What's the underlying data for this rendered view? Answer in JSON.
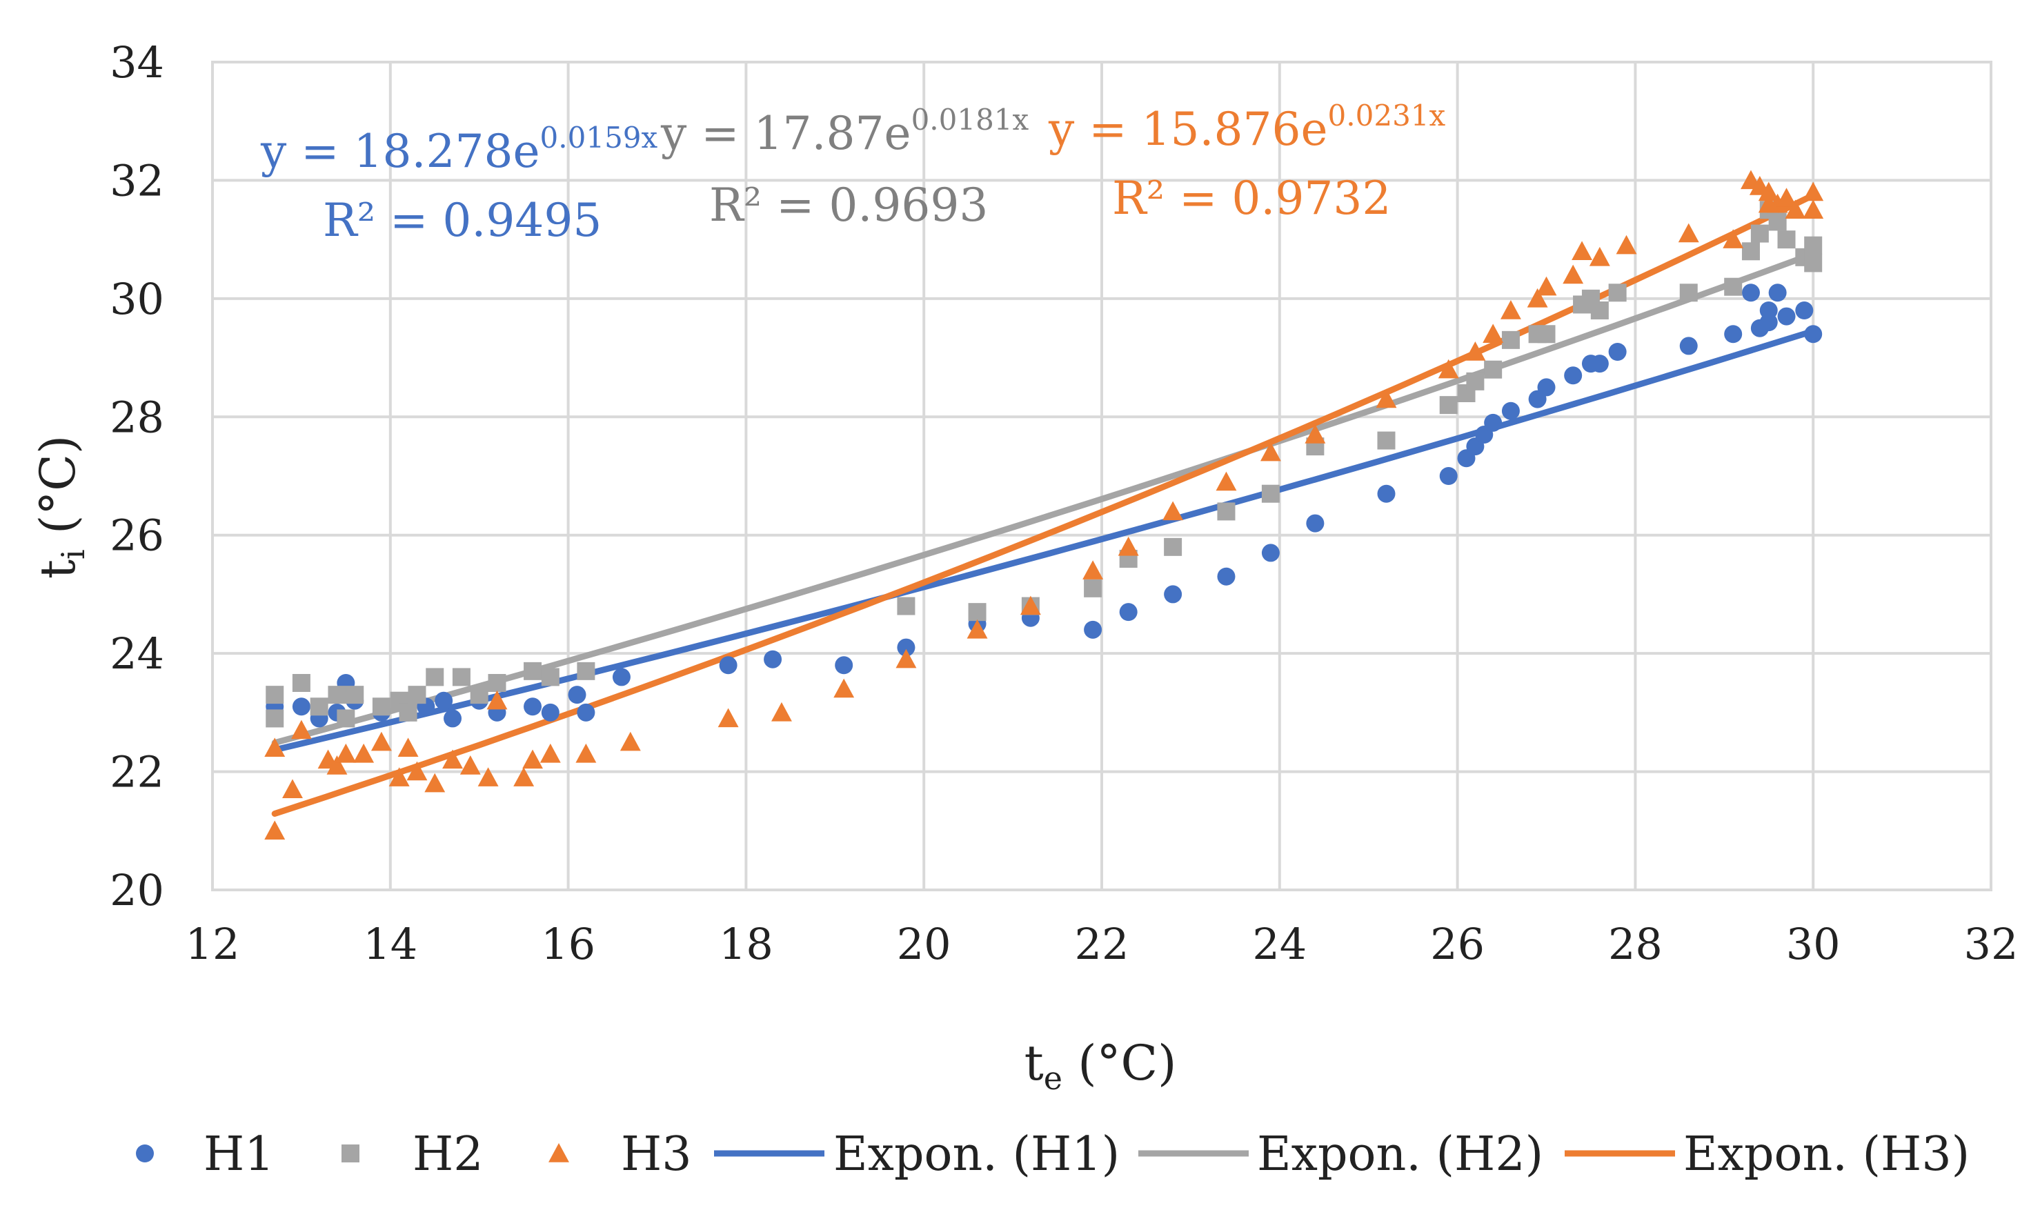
{
  "chart_data": {
    "type": "scatter",
    "title": "",
    "xlabel": {
      "base": "t",
      "sub": "e",
      "unit": " (°C)"
    },
    "ylabel": {
      "base": "t",
      "sub": "i",
      "unit": " (°C)"
    },
    "xlim": [
      12,
      32
    ],
    "ylim": [
      20,
      34
    ],
    "xticks": [
      12,
      14,
      16,
      18,
      20,
      22,
      24,
      26,
      28,
      30,
      32
    ],
    "yticks": [
      20,
      22,
      24,
      26,
      28,
      30,
      32,
      34
    ],
    "grid": true,
    "legend_position": "bottom",
    "series": [
      {
        "name": "H1",
        "marker": "circle",
        "color": "#4472C4",
        "points": [
          [
            12.7,
            23.1
          ],
          [
            13.0,
            23.1
          ],
          [
            13.2,
            22.9
          ],
          [
            13.4,
            23.0
          ],
          [
            13.5,
            23.5
          ],
          [
            13.6,
            23.2
          ],
          [
            13.9,
            23.0
          ],
          [
            14.2,
            23.0
          ],
          [
            14.4,
            23.1
          ],
          [
            14.6,
            23.2
          ],
          [
            14.7,
            22.9
          ],
          [
            15.0,
            23.2
          ],
          [
            15.2,
            23.0
          ],
          [
            15.6,
            23.1
          ],
          [
            15.8,
            23.0
          ],
          [
            16.1,
            23.3
          ],
          [
            16.2,
            23.0
          ],
          [
            16.6,
            23.6
          ],
          [
            17.8,
            23.8
          ],
          [
            18.3,
            23.9
          ],
          [
            19.1,
            23.8
          ],
          [
            19.8,
            24.1
          ],
          [
            20.6,
            24.5
          ],
          [
            21.2,
            24.6
          ],
          [
            21.9,
            24.4
          ],
          [
            22.3,
            24.7
          ],
          [
            22.8,
            25.0
          ],
          [
            23.4,
            25.3
          ],
          [
            23.9,
            25.7
          ],
          [
            24.4,
            26.2
          ],
          [
            25.2,
            26.7
          ],
          [
            25.9,
            27.0
          ],
          [
            26.1,
            27.3
          ],
          [
            26.2,
            27.5
          ],
          [
            26.3,
            27.7
          ],
          [
            26.4,
            27.9
          ],
          [
            26.6,
            28.1
          ],
          [
            26.9,
            28.3
          ],
          [
            27.0,
            28.5
          ],
          [
            27.3,
            28.7
          ],
          [
            27.5,
            28.9
          ],
          [
            27.6,
            28.9
          ],
          [
            27.8,
            29.1
          ],
          [
            28.6,
            29.2
          ],
          [
            29.1,
            29.4
          ],
          [
            29.3,
            30.1
          ],
          [
            29.4,
            29.5
          ],
          [
            29.5,
            29.8
          ],
          [
            29.5,
            29.6
          ],
          [
            29.6,
            30.1
          ],
          [
            29.7,
            29.7
          ],
          [
            29.9,
            29.8
          ],
          [
            30.0,
            29.4
          ]
        ]
      },
      {
        "name": "H2",
        "marker": "square",
        "color": "#A5A5A5",
        "points": [
          [
            12.7,
            23.3
          ],
          [
            12.7,
            22.9
          ],
          [
            13.0,
            23.5
          ],
          [
            13.2,
            23.1
          ],
          [
            13.4,
            23.3
          ],
          [
            13.5,
            22.9
          ],
          [
            13.6,
            23.3
          ],
          [
            13.9,
            23.1
          ],
          [
            14.1,
            23.2
          ],
          [
            14.2,
            23.0
          ],
          [
            14.3,
            23.3
          ],
          [
            14.5,
            23.6
          ],
          [
            14.8,
            23.6
          ],
          [
            15.0,
            23.3
          ],
          [
            15.2,
            23.5
          ],
          [
            15.6,
            23.7
          ],
          [
            15.8,
            23.6
          ],
          [
            16.2,
            23.7
          ],
          [
            19.8,
            24.8
          ],
          [
            20.6,
            24.7
          ],
          [
            21.2,
            24.8
          ],
          [
            21.9,
            25.1
          ],
          [
            22.3,
            25.6
          ],
          [
            22.8,
            25.8
          ],
          [
            23.4,
            26.4
          ],
          [
            23.9,
            26.7
          ],
          [
            24.4,
            27.5
          ],
          [
            25.2,
            27.6
          ],
          [
            25.9,
            28.2
          ],
          [
            26.1,
            28.4
          ],
          [
            26.2,
            28.6
          ],
          [
            26.4,
            28.8
          ],
          [
            26.6,
            29.3
          ],
          [
            26.9,
            29.4
          ],
          [
            27.0,
            29.4
          ],
          [
            27.4,
            29.9
          ],
          [
            27.5,
            30.0
          ],
          [
            27.6,
            29.8
          ],
          [
            27.8,
            30.1
          ],
          [
            28.6,
            30.1
          ],
          [
            29.1,
            30.2
          ],
          [
            29.3,
            30.8
          ],
          [
            29.4,
            31.1
          ],
          [
            29.5,
            31.5
          ],
          [
            29.6,
            31.3
          ],
          [
            29.7,
            31.0
          ],
          [
            29.9,
            30.7
          ],
          [
            30.0,
            30.6
          ],
          [
            30.0,
            30.9
          ]
        ]
      },
      {
        "name": "H3",
        "marker": "triangle",
        "color": "#ED7D31",
        "points": [
          [
            12.7,
            21.0
          ],
          [
            12.7,
            22.4
          ],
          [
            12.9,
            21.7
          ],
          [
            13.0,
            22.7
          ],
          [
            13.3,
            22.2
          ],
          [
            13.4,
            22.1
          ],
          [
            13.5,
            22.3
          ],
          [
            13.7,
            22.3
          ],
          [
            13.9,
            22.5
          ],
          [
            14.1,
            21.9
          ],
          [
            14.2,
            22.4
          ],
          [
            14.3,
            22.0
          ],
          [
            14.5,
            21.8
          ],
          [
            14.7,
            22.2
          ],
          [
            14.9,
            22.1
          ],
          [
            15.1,
            21.9
          ],
          [
            15.2,
            23.2
          ],
          [
            15.5,
            21.9
          ],
          [
            15.6,
            22.2
          ],
          [
            15.8,
            22.3
          ],
          [
            16.2,
            22.3
          ],
          [
            16.7,
            22.5
          ],
          [
            17.8,
            22.9
          ],
          [
            18.4,
            23.0
          ],
          [
            19.1,
            23.4
          ],
          [
            19.8,
            23.9
          ],
          [
            20.6,
            24.4
          ],
          [
            21.2,
            24.8
          ],
          [
            21.9,
            25.4
          ],
          [
            22.3,
            25.8
          ],
          [
            22.8,
            26.4
          ],
          [
            23.4,
            26.9
          ],
          [
            23.9,
            27.4
          ],
          [
            24.4,
            27.7
          ],
          [
            25.2,
            28.3
          ],
          [
            25.9,
            28.8
          ],
          [
            26.2,
            29.1
          ],
          [
            26.4,
            29.4
          ],
          [
            26.6,
            29.8
          ],
          [
            26.9,
            30.0
          ],
          [
            27.0,
            30.2
          ],
          [
            27.3,
            30.4
          ],
          [
            27.4,
            30.8
          ],
          [
            27.6,
            30.7
          ],
          [
            27.9,
            30.9
          ],
          [
            28.6,
            31.1
          ],
          [
            29.1,
            31.0
          ],
          [
            29.3,
            32.0
          ],
          [
            29.4,
            31.9
          ],
          [
            29.5,
            31.6
          ],
          [
            29.5,
            31.8
          ],
          [
            29.6,
            31.6
          ],
          [
            29.7,
            31.7
          ],
          [
            29.8,
            31.5
          ],
          [
            30.0,
            31.5
          ],
          [
            30.0,
            31.8
          ]
        ]
      }
    ],
    "trendlines": [
      {
        "name": "Expon. (H1)",
        "color": "#4472C4",
        "a": 18.278,
        "b": 0.0159,
        "x_range": [
          12.7,
          30.0
        ]
      },
      {
        "name": "Expon. (H2)",
        "color": "#A5A5A5",
        "a": 17.87,
        "b": 0.0181,
        "x_range": [
          12.7,
          30.0
        ]
      },
      {
        "name": "Expon. (H3)",
        "color": "#ED7D31",
        "a": 15.876,
        "b": 0.0231,
        "x_range": [
          12.7,
          30.0
        ]
      }
    ],
    "equations": [
      {
        "color": "#4472C4",
        "y_prefix": "y = 18.278e",
        "exponent": "0.0159x",
        "r2": "R² = 0.9495"
      },
      {
        "color": "#808080",
        "y_prefix": "y = 17.87e",
        "exponent": "0.0181x",
        "r2": "R² = 0.9693"
      },
      {
        "color": "#ED7D31",
        "y_prefix": "y = 15.876e",
        "exponent": "0.0231x",
        "r2": "R² = 0.9732"
      }
    ],
    "legend": [
      {
        "label": "H1",
        "type": "marker",
        "marker": "circle",
        "color": "#4472C4"
      },
      {
        "label": "H2",
        "type": "marker",
        "marker": "square",
        "color": "#A5A5A5"
      },
      {
        "label": "H3",
        "type": "marker",
        "marker": "triangle",
        "color": "#ED7D31"
      },
      {
        "label": "Expon. (H1)",
        "type": "line",
        "color": "#4472C4"
      },
      {
        "label": "Expon. (H2)",
        "type": "line",
        "color": "#A5A5A5"
      },
      {
        "label": "Expon. (H3)",
        "type": "line",
        "color": "#ED7D31"
      }
    ]
  }
}
